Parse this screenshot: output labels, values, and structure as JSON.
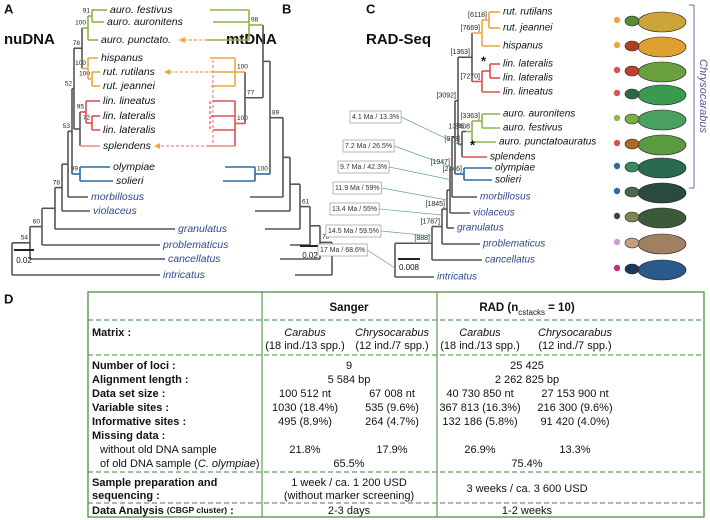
{
  "panel_a": {
    "letter": "A",
    "title": "nuDNA",
    "tips": [
      "auro. festivus",
      "auro. auronitens",
      "auro. punctato.",
      "hispanus",
      "rut. rutilans",
      "rut. jeannei",
      "lin. lineatus",
      "lin. lateralis",
      "lin. lateralis",
      "splendens",
      "olympiae",
      "solieri",
      "morbillosus",
      "violaceus",
      "granulatus",
      "problematicus",
      "cancellatus",
      "intricatus"
    ],
    "supports": [
      54,
      60,
      78,
      53,
      99,
      52,
      78,
      100,
      91,
      100,
      100,
      95,
      72
    ],
    "scale": "0.02"
  },
  "panel_b": {
    "letter": "B",
    "title": "mtDNA",
    "supports": [
      70,
      61,
      89,
      100,
      98,
      77,
      100,
      100
    ],
    "scale": "0.02"
  },
  "panel_c": {
    "letter": "C",
    "title": "RAD-Seq",
    "tips": [
      "rut. rutilans",
      "rut. jeannei",
      "hispanus",
      "lin. lateralis",
      "lin. lateralis",
      "lin. lineatus",
      "auro. auronitens",
      "auro. festivus",
      "auro. punctatoauratus",
      "splendens",
      "olympiae",
      "solieri",
      "morbillosus",
      "violaceus",
      "granulatus",
      "problematicus",
      "cancellatus",
      "intricatus"
    ],
    "node_labels": [
      "[6118]",
      "[7669]",
      "[1363]",
      "[7270]",
      "[3092]",
      "[3363]",
      3408,
      1376,
      "[973]",
      "[1947]",
      "[2146]",
      "[1845]",
      "[1787]",
      "[888]"
    ],
    "dates": [
      "4.1 Ma / 13.3%",
      "7.2 Ma / 26.5%",
      "9.7 Ma / 42.3%",
      "11.9 Ma / 59%",
      "13.4 Ma / 55%",
      "14.5 Ma / 59.5%",
      "17 Ma / 68.6%"
    ],
    "asterisk": "*",
    "scale": "0.008",
    "clade": "Chrysocarabus"
  },
  "panel_d": {
    "letter": "D",
    "sanger": "Sanger",
    "rad": [
      "RAD (n",
      "cstacks",
      " = 10)"
    ],
    "matrix": {
      "label": "Matrix :",
      "cols": [
        [
          "Carabus",
          "(18 ind./13 spp.)"
        ],
        [
          "Chrysocarabus",
          "(12 ind./7 spp.)"
        ],
        [
          "Carabus",
          "(18 ind./13 spp.)"
        ],
        [
          "Chrysocarabus",
          "(12 ind./7 spp.)"
        ]
      ]
    },
    "rows": [
      {
        "label": "Number of loci :",
        "sanger": "9",
        "rad": "25 425"
      },
      {
        "label": "Alignment length :",
        "sanger": "5 584 bp",
        "rad": "2 262 825 bp"
      },
      {
        "label": "Data set size :",
        "cells": [
          "100 512 nt",
          "67 008 nt",
          "40 730 850 nt",
          "27 153 900 nt"
        ]
      },
      {
        "label": "Variable sites :",
        "cells": [
          "1030 (18.4%)",
          "535 (9.6%)",
          "367 813 (16.3%)",
          "216 300 (9.6%)"
        ]
      },
      {
        "label": "Informative sites :",
        "cells": [
          "495 (8.9%)",
          "264 (4.7%)",
          "132 186 (5.8%)",
          "91 420 (4.0%)"
        ]
      },
      {
        "label": "Missing data :"
      },
      {
        "label": "without old DNA sample",
        "cells": [
          "21.8%",
          "17.9%",
          "26.9%",
          "13.3%"
        ]
      },
      {
        "label": [
          "of old DNA sample (",
          "C. olympiae",
          ")"
        ],
        "sanger": "65.5%",
        "rad": "75.4%"
      }
    ],
    "prep": {
      "label": [
        "Sample preparation and",
        "sequencing :"
      ],
      "sanger": [
        "1 week / ca. 1 200 USD",
        "(without marker screening)"
      ],
      "rad": "3 weeks / ca. 3 600 USD"
    },
    "analysis": {
      "label": [
        "Data Analysis ",
        "(CBGP cluster)",
        " :"
      ],
      "sanger": "2-3 days",
      "rad": "1-2 weeks"
    }
  }
}
